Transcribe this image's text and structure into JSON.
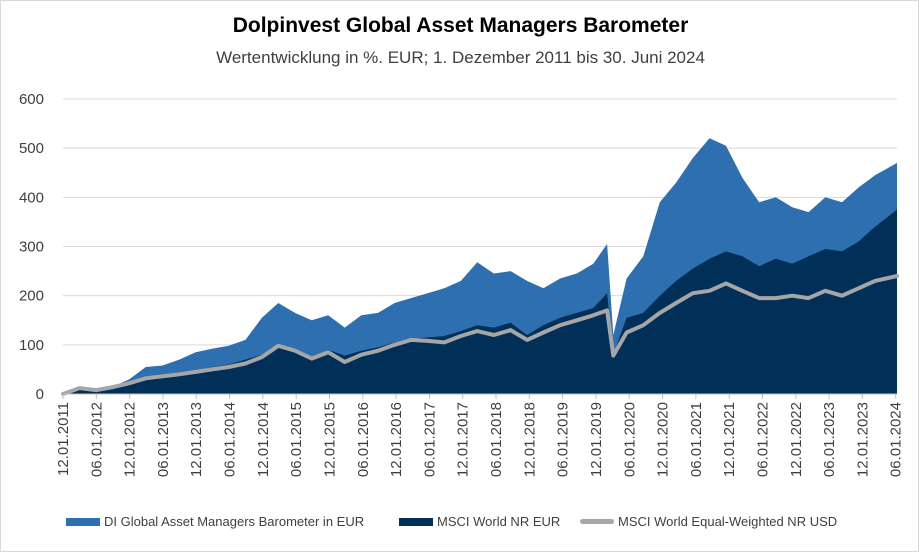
{
  "title": "Dolpinvest Global Asset Managers Barometer",
  "subtitle": "Wertentwicklung in %. EUR; 1. Dezember 2011 bis 30. Juni 2024",
  "colors": {
    "barometer": "#2e6fb0",
    "msci_world": "#003057",
    "msci_equal": "#a6a6a6",
    "grid": "#d9d9d9"
  },
  "chart_data": {
    "type": "area",
    "title": "Dolpinvest Global Asset Managers Barometer",
    "subtitle": "Wertentwicklung in %. EUR; 1. Dezember 2011 bis 30. Juni 2024",
    "ylim": [
      0,
      600
    ],
    "yticks": [
      0,
      100,
      200,
      300,
      400,
      500,
      600
    ],
    "grid": true,
    "legend_position": "bottom",
    "x_tick_labels": [
      "12.01.2011",
      "06.01.2012",
      "12.01.2012",
      "06.01.2013",
      "12.01.2013",
      "06.01.2014",
      "12.01.2014",
      "06.01.2015",
      "12.01.2015",
      "06.01.2016",
      "12.01.2016",
      "06.01.2017",
      "12.01.2017",
      "06.01.2018",
      "12.01.2018",
      "06.01.2019",
      "12.01.2019",
      "06.01.2020",
      "12.01.2020",
      "06.01.2021",
      "12.01.2021",
      "06.01.2022",
      "12.01.2022",
      "06.01.2023",
      "12.01.2023",
      "06.01.2024"
    ],
    "x": [
      "2011-12-01",
      "2012-03-01",
      "2012-06-01",
      "2012-09-01",
      "2012-12-01",
      "2013-03-01",
      "2013-06-01",
      "2013-09-01",
      "2013-12-01",
      "2014-03-01",
      "2014-06-01",
      "2014-09-01",
      "2014-12-01",
      "2015-03-01",
      "2015-06-01",
      "2015-09-01",
      "2015-12-01",
      "2016-03-01",
      "2016-06-01",
      "2016-09-01",
      "2016-12-01",
      "2017-03-01",
      "2017-06-01",
      "2017-09-01",
      "2017-12-01",
      "2018-03-01",
      "2018-06-01",
      "2018-09-01",
      "2018-12-01",
      "2019-03-01",
      "2019-06-01",
      "2019-09-01",
      "2019-12-01",
      "2020-02-15",
      "2020-03-20",
      "2020-06-01",
      "2020-09-01",
      "2020-12-01",
      "2021-03-01",
      "2021-06-01",
      "2021-09-01",
      "2021-12-01",
      "2022-03-01",
      "2022-06-01",
      "2022-09-01",
      "2022-12-01",
      "2023-03-01",
      "2023-06-01",
      "2023-09-01",
      "2023-12-01",
      "2024-03-01",
      "2024-06-30"
    ],
    "series": [
      {
        "name": "DI Global Asset Managers Barometer in EUR",
        "style": "area",
        "values": [
          0,
          12,
          10,
          15,
          30,
          55,
          58,
          70,
          85,
          92,
          98,
          110,
          155,
          185,
          165,
          150,
          160,
          135,
          160,
          165,
          185,
          195,
          205,
          215,
          230,
          268,
          245,
          250,
          230,
          215,
          235,
          245,
          265,
          305,
          120,
          235,
          280,
          390,
          430,
          480,
          520,
          505,
          440,
          390,
          400,
          380,
          370,
          400,
          390,
          420,
          445,
          470
        ]
      },
      {
        "name": "MSCI World NR EUR",
        "style": "area",
        "values": [
          0,
          10,
          8,
          12,
          20,
          32,
          38,
          42,
          48,
          55,
          60,
          70,
          80,
          100,
          88,
          72,
          90,
          78,
          88,
          95,
          105,
          112,
          115,
          118,
          128,
          140,
          135,
          145,
          120,
          140,
          155,
          165,
          175,
          205,
          80,
          155,
          165,
          200,
          230,
          255,
          275,
          290,
          280,
          260,
          275,
          265,
          280,
          295,
          290,
          310,
          340,
          375
        ]
      },
      {
        "name": "MSCI World Equal-Weighted NR USD",
        "style": "line",
        "values": [
          0,
          12,
          8,
          14,
          22,
          32,
          36,
          40,
          45,
          50,
          55,
          62,
          75,
          98,
          88,
          72,
          85,
          65,
          80,
          88,
          100,
          110,
          108,
          105,
          118,
          128,
          120,
          130,
          110,
          125,
          140,
          150,
          160,
          170,
          78,
          125,
          140,
          165,
          185,
          205,
          210,
          225,
          210,
          195,
          195,
          200,
          195,
          210,
          200,
          215,
          230,
          240
        ]
      }
    ]
  }
}
